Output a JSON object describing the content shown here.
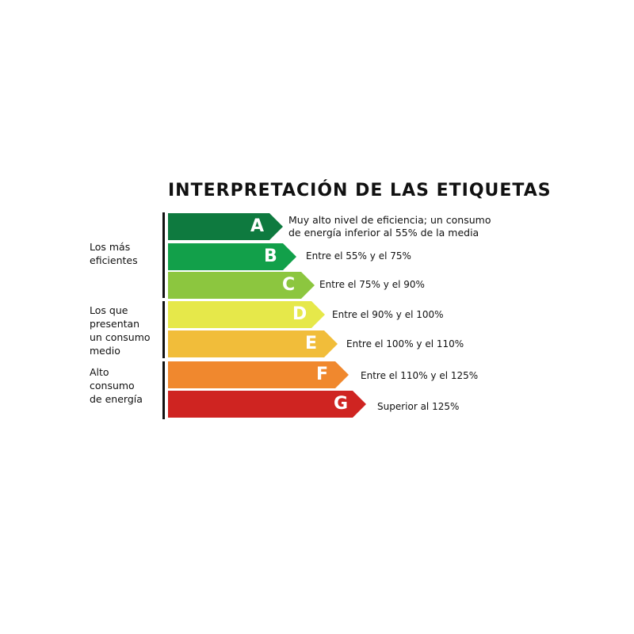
{
  "title": "INTERPRETACIÓN DE LAS ETIQUETAS",
  "groups": [
    {
      "label": "Los más\neficientes"
    },
    {
      "label": "Los que\npresentan\nun consumo\nmedio"
    },
    {
      "label": "Alto\nconsumo\nde energía"
    }
  ],
  "bands": [
    {
      "letter": "A",
      "color": "#0e7a3f",
      "desc_line1": "Muy alto nivel de eficiencia; un consumo",
      "desc_line2": "de energía inferior al 55% de la media"
    },
    {
      "letter": "B",
      "color": "#12a04a",
      "desc": "Entre el 55% y el 75%"
    },
    {
      "letter": "C",
      "color": "#8cc63f",
      "desc": "Entre el 75% y el 90%"
    },
    {
      "letter": "D",
      "color": "#e6e84a",
      "desc": "Entre el 90% y el 100%"
    },
    {
      "letter": "E",
      "color": "#f1bd3a",
      "desc": "Entre el 100% y el 110%"
    },
    {
      "letter": "F",
      "color": "#f0882e",
      "desc": "Entre el 110% y el 125%"
    },
    {
      "letter": "G",
      "color": "#cf2421",
      "desc": "Superior al 125%"
    }
  ]
}
